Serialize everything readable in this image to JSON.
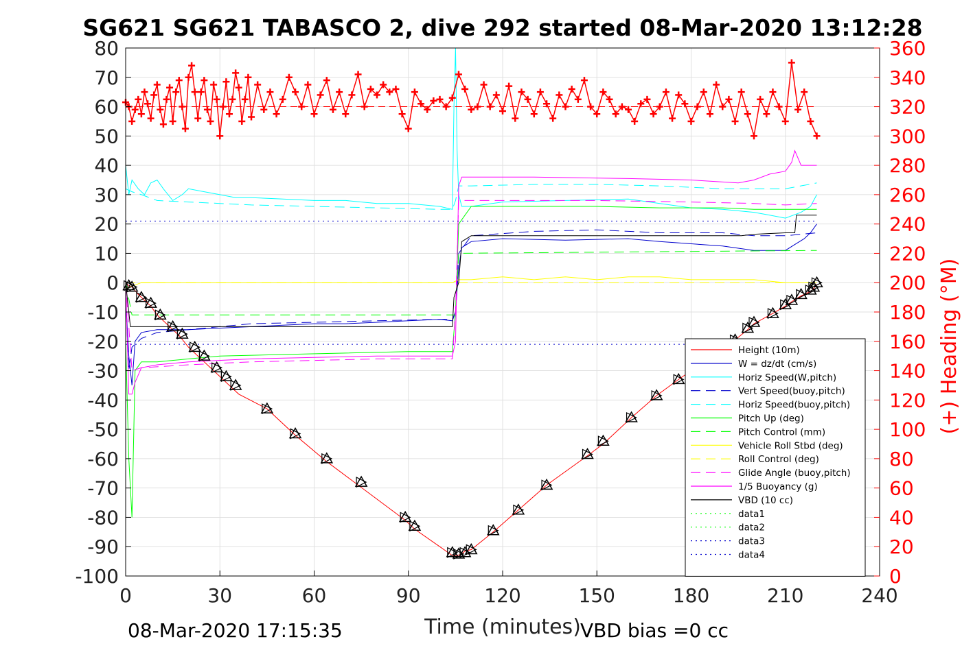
{
  "chart_data": {
    "type": "line",
    "title": "SG621 SG621 TABASCO 2, dive 292 started 08-Mar-2020 13:12:28",
    "xlabel": "Time (minutes)",
    "ylabel_right": "(+) Heading (°M)",
    "xlim": [
      0,
      240
    ],
    "ylim": [
      -100,
      80
    ],
    "ylim_right": [
      0,
      360
    ],
    "xticks": [
      0,
      30,
      60,
      90,
      120,
      150,
      180,
      210,
      240
    ],
    "yticks": [
      -100,
      -90,
      -80,
      -70,
      -60,
      -50,
      -40,
      -30,
      -20,
      -10,
      0,
      10,
      20,
      30,
      40,
      50,
      60,
      70,
      80
    ],
    "yticks_right": [
      0,
      20,
      40,
      60,
      80,
      100,
      120,
      140,
      160,
      180,
      200,
      220,
      240,
      260,
      280,
      300,
      320,
      340,
      360
    ],
    "grid": true,
    "legend_position": "bottom-right",
    "footer_left": "08-Mar-2020 17:15:35",
    "footer_right": "VBD bias =0 cc",
    "colors": {
      "height": "#ff0000",
      "w": "#0000cc",
      "horiz": "#00ffff",
      "pitch": "#00ff00",
      "roll": "#ffff00",
      "glide": "#ff00ff",
      "buoy": "#ff00ff",
      "vbd": "#000000",
      "heading": "#ff0000",
      "datablue": "#00008b"
    },
    "series": [
      {
        "name": "Height (10m)",
        "color": "#ff0000",
        "style": "solid",
        "width": 1,
        "x": [
          0,
          1,
          2,
          4,
          6,
          8,
          10,
          13,
          15,
          17,
          20,
          23,
          25,
          28,
          30,
          32,
          34,
          36,
          45,
          54,
          64,
          74,
          89,
          92,
          104,
          105.5,
          107,
          108,
          110,
          117,
          125,
          134,
          147,
          152,
          161,
          169,
          176,
          194,
          198,
          200,
          206,
          210,
          212,
          215,
          218,
          219,
          220
        ],
        "y": [
          0,
          -1,
          -1.5,
          -4,
          -6,
          -8,
          -11,
          -14,
          -16,
          -18,
          -22,
          -25,
          -27,
          -30,
          -32,
          -34,
          -36,
          -38,
          -43,
          -52,
          -61,
          -69,
          -81,
          -84,
          -93,
          -93,
          -92.5,
          -91.5,
          -91,
          -85,
          -77.5,
          -69,
          -59,
          -55,
          -46,
          -38.5,
          -33,
          -19.5,
          -16,
          -14,
          -10.5,
          -8,
          -6.5,
          -4.5,
          -3,
          -2,
          -0.5
        ]
      },
      {
        "name": "W = dz/dt (cm/s)",
        "color": "#0000cc",
        "style": "solid",
        "width": 1,
        "x": [
          0,
          1,
          2,
          3,
          5,
          10,
          20,
          30,
          40,
          50,
          60,
          70,
          80,
          90,
          100,
          104,
          105,
          106,
          107,
          110,
          120,
          140,
          160,
          170,
          190,
          200,
          210,
          213,
          216,
          218,
          220
        ],
        "y": [
          -5,
          -25,
          -35,
          -20,
          -17,
          -16,
          -16,
          -15.5,
          -15,
          -14.5,
          -14,
          -14,
          -13.5,
          -13,
          -12.5,
          -13,
          -10,
          5,
          12,
          14,
          15,
          14.5,
          15,
          14,
          12.5,
          11,
          11,
          13,
          15,
          17,
          20
        ]
      },
      {
        "name": "Horiz Speed(W,pitch)",
        "color": "#00ffff",
        "style": "solid",
        "width": 1,
        "x": [
          0,
          1,
          2,
          4,
          6,
          8,
          10,
          12,
          15,
          18,
          20,
          25,
          30,
          35,
          40,
          50,
          60,
          70,
          80,
          90,
          100,
          104,
          104.5,
          105,
          105.5,
          106,
          107,
          110,
          120,
          140,
          160,
          170,
          180,
          190,
          200,
          205,
          210,
          215,
          218,
          220
        ],
        "y": [
          40,
          30,
          35,
          32,
          30,
          34,
          35,
          32,
          28,
          30,
          32,
          31,
          30,
          29,
          29,
          28.5,
          28,
          28,
          27,
          27,
          26,
          25,
          60,
          80,
          45,
          30,
          26,
          26,
          27.5,
          28,
          28.5,
          27,
          25.5,
          25,
          24,
          23,
          22,
          24,
          26,
          30
        ]
      },
      {
        "name": "Vert Speed(buoy,pitch)",
        "color": "#0000cc",
        "style": "dashed",
        "width": 1,
        "x": [
          0,
          1,
          2,
          5,
          10,
          20,
          40,
          60,
          80,
          100,
          104,
          105,
          106,
          110,
          130,
          150,
          170,
          190,
          200,
          210,
          220
        ],
        "y": [
          -5,
          -30,
          -22,
          -19,
          -17,
          -16,
          -14,
          -13.5,
          -13,
          -12.5,
          -12.5,
          -10,
          10,
          16,
          17.5,
          18,
          17,
          17,
          16,
          16,
          17
        ]
      },
      {
        "name": "Horiz Speed(buoy,pitch)",
        "color": "#00ffff",
        "style": "dashed",
        "width": 1,
        "x": [
          0,
          2,
          5,
          10,
          20,
          30,
          40,
          60,
          80,
          100,
          104,
          105,
          106,
          110,
          130,
          150,
          170,
          190,
          200,
          210,
          220
        ],
        "y": [
          32,
          31,
          30,
          28,
          27.5,
          27,
          26.5,
          26,
          25.5,
          25,
          25,
          28,
          33,
          33,
          33.5,
          33.5,
          33,
          32,
          32,
          32,
          34
        ]
      },
      {
        "name": "Pitch Up (deg)",
        "color": "#00ff00",
        "style": "solid",
        "width": 1,
        "x": [
          0,
          1,
          2,
          3,
          5,
          10,
          20,
          30,
          50,
          70,
          90,
          104,
          105,
          106,
          110,
          130,
          150,
          170,
          190,
          200,
          210,
          220
        ],
        "y": [
          -20,
          -60,
          -80,
          -30,
          -27,
          -27,
          -26,
          -25,
          -24.5,
          -24,
          -23.5,
          -23.5,
          -10,
          20,
          26,
          26,
          26,
          25.5,
          25.5,
          25,
          25,
          25
        ]
      },
      {
        "name": "Pitch Control (mm)",
        "color": "#00ff00",
        "style": "dashed",
        "width": 1,
        "x": [
          0,
          2,
          3,
          104,
          105,
          106,
          220
        ],
        "y": [
          0,
          -11,
          -11,
          -11,
          -11,
          10,
          11
        ]
      },
      {
        "name": "Vehicle Roll Stbd (deg)",
        "color": "#ffff00",
        "style": "solid",
        "width": 1,
        "x": [
          0,
          5,
          10,
          20,
          30,
          40,
          50,
          60,
          70,
          80,
          90,
          100,
          104,
          106,
          110,
          120,
          130,
          140,
          150,
          160,
          170,
          180,
          190,
          200,
          210,
          220
        ],
        "y": [
          -2,
          0,
          0,
          0,
          0,
          0,
          0,
          0,
          0,
          0,
          0,
          0,
          0,
          1,
          1,
          2,
          1,
          2,
          1,
          2,
          2,
          1,
          1,
          1,
          0,
          0
        ]
      },
      {
        "name": "Roll Control (deg)",
        "color": "#ffff00",
        "style": "dashed",
        "width": 1,
        "x": [
          0,
          104,
          105,
          220
        ],
        "y": [
          0,
          0,
          0,
          0
        ]
      },
      {
        "name": "Glide Angle (buoy,pitch)",
        "color": "#ff00ff",
        "style": "dashed",
        "width": 1,
        "x": [
          0,
          2,
          5,
          20,
          40,
          60,
          80,
          104,
          105,
          106,
          120,
          150,
          180,
          200,
          210,
          220
        ],
        "y": [
          0,
          -30,
          -29,
          -28,
          -27,
          -26.5,
          -26,
          -26,
          -10,
          28,
          28,
          28,
          27.5,
          27,
          26.5,
          27
        ]
      },
      {
        "name": "1/5 Buoyancy (g)",
        "color": "#ff00ff",
        "style": "solid",
        "width": 1,
        "x": [
          0,
          1,
          2,
          3,
          5,
          10,
          20,
          40,
          60,
          80,
          104,
          105,
          106,
          107,
          130,
          160,
          180,
          195,
          200,
          205,
          210,
          212,
          213,
          215,
          220
        ],
        "y": [
          0,
          -38,
          -38,
          -34,
          -29,
          -28,
          -27,
          -26,
          -25.5,
          -25,
          -25,
          -20,
          33,
          36,
          36,
          35.5,
          35,
          34,
          35,
          37,
          38,
          41,
          45,
          40,
          40
        ]
      },
      {
        "name": "VBD (10 cc)",
        "color": "#000000",
        "style": "solid",
        "width": 1,
        "x": [
          0,
          1,
          1.5,
          2,
          3,
          104,
          104.5,
          106,
          107,
          110,
          190,
          196,
          200,
          210,
          213,
          213.5,
          220
        ],
        "y": [
          0,
          -10,
          -15,
          -15,
          -15,
          -15,
          -5,
          0,
          14,
          16,
          16,
          16,
          16.5,
          17,
          17,
          23,
          23
        ]
      },
      {
        "name": "data1",
        "color": "#00ff00",
        "style": "dotted",
        "width": 1,
        "x": [],
        "y": []
      },
      {
        "name": "data2",
        "color": "#00ff00",
        "style": "dotted",
        "width": 1,
        "x": [],
        "y": []
      },
      {
        "name": "data3",
        "color": "#0000cc",
        "style": "dotted",
        "width": 1,
        "x": [
          0,
          220
        ],
        "y": [
          21,
          21
        ]
      },
      {
        "name": "data4",
        "color": "#0000cc",
        "style": "dotted",
        "width": 1,
        "x": [
          0,
          220
        ],
        "y": [
          -21,
          -21
        ]
      }
    ],
    "heading": {
      "name": "Heading",
      "color": "#ff0000",
      "axis": "right",
      "marker": "+",
      "mean": 320,
      "mean_dashed": true,
      "x": [
        0,
        1,
        2,
        3,
        4,
        5,
        6,
        7,
        8,
        9,
        10,
        11,
        12,
        13,
        14,
        15,
        16,
        17,
        18,
        19,
        20,
        21,
        22,
        23,
        24,
        25,
        26,
        27,
        28,
        29,
        30,
        31,
        32,
        33,
        34,
        35,
        36,
        37,
        38,
        39,
        40,
        42,
        44,
        46,
        48,
        50,
        52,
        54,
        56,
        58,
        60,
        62,
        64,
        66,
        68,
        70,
        72,
        74,
        76,
        78,
        80,
        82,
        84,
        86,
        88,
        90,
        92,
        94,
        96,
        98,
        100,
        102,
        104,
        106,
        108,
        110,
        112,
        114,
        116,
        118,
        120,
        122,
        124,
        126,
        128,
        130,
        132,
        134,
        136,
        138,
        140,
        142,
        144,
        146,
        148,
        150,
        152,
        154,
        156,
        158,
        160,
        162,
        164,
        166,
        168,
        170,
        172,
        174,
        176,
        178,
        180,
        182,
        184,
        186,
        188,
        190,
        192,
        194,
        196,
        198,
        200,
        202,
        204,
        206,
        208,
        210,
        212,
        214,
        216,
        218,
        220
      ],
      "y": [
        323,
        320,
        310,
        318,
        325,
        315,
        330,
        322,
        312,
        328,
        335,
        318,
        308,
        325,
        333,
        310,
        330,
        338,
        320,
        305,
        340,
        348,
        330,
        312,
        330,
        338,
        318,
        310,
        335,
        325,
        300,
        320,
        337,
        315,
        325,
        343,
        333,
        310,
        325,
        340,
        313,
        335,
        318,
        330,
        315,
        325,
        340,
        330,
        320,
        335,
        315,
        328,
        338,
        318,
        330,
        315,
        328,
        342,
        320,
        332,
        328,
        335,
        330,
        332,
        315,
        305,
        330,
        322,
        318,
        324,
        325,
        320,
        326,
        342,
        332,
        318,
        320,
        335,
        320,
        328,
        317,
        334,
        312,
        330,
        325,
        315,
        330,
        322,
        312,
        328,
        320,
        332,
        325,
        338,
        320,
        315,
        330,
        325,
        315,
        320,
        318,
        310,
        322,
        325,
        315,
        320,
        330,
        312,
        328,
        322,
        310,
        320,
        330,
        315,
        335,
        320,
        325,
        310,
        330,
        315,
        300,
        325,
        315,
        330,
        320,
        310,
        350,
        318,
        330,
        310,
        300
      ]
    },
    "markers": {
      "name": "Height markers",
      "color": "#000000",
      "symbol": "triangle",
      "x": [
        1,
        2,
        5,
        8,
        11,
        15,
        18,
        22,
        25,
        29,
        32,
        35,
        45,
        54,
        64,
        75,
        89,
        92,
        104,
        106,
        108,
        110,
        117,
        125,
        134,
        147,
        152,
        161,
        169,
        176,
        194,
        198,
        200,
        206,
        210,
        212,
        215,
        218,
        219,
        220
      ],
      "y": [
        -1,
        -1.5,
        -5,
        -7,
        -11,
        -15,
        -17.5,
        -22,
        -25,
        -29,
        -32,
        -35,
        -43,
        -51.5,
        -60,
        -68,
        -80,
        -83,
        -92,
        -92.5,
        -92,
        -91,
        -84.5,
        -77.5,
        -69,
        -58.5,
        -54,
        -46,
        -38.5,
        -33,
        -19.5,
        -15.5,
        -13.5,
        -10.5,
        -7.5,
        -6,
        -4,
        -2.5,
        -1.5,
        0
      ]
    }
  }
}
